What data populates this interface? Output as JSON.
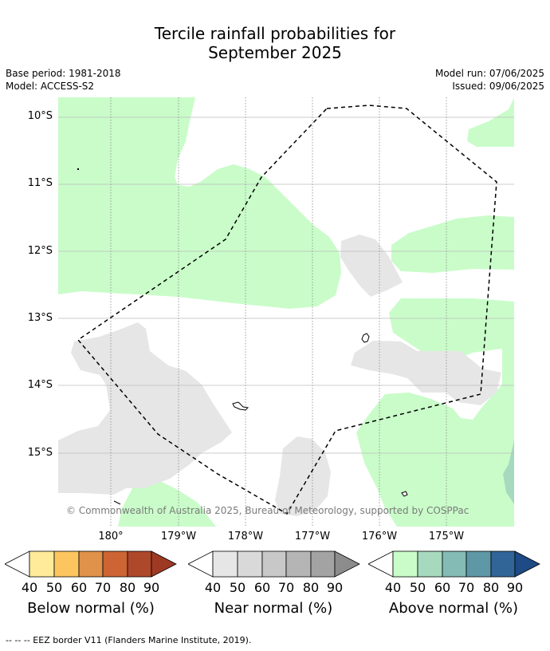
{
  "title_line1": "Tercile rainfall probabilities for",
  "title_line2": "September 2025",
  "base_period": "Base period: 1981-2018",
  "model": "Model: ACCESS-S2",
  "model_run": "Model run: 07/06/2025",
  "issued": "Issued: 09/06/2025",
  "lat_labels": [
    "10°S",
    "11°S",
    "12°S",
    "13°S",
    "14°S",
    "15°S"
  ],
  "lon_labels": [
    "180°",
    "179°W",
    "178°W",
    "177°W",
    "176°W",
    "175°W"
  ],
  "copyright": "© Commonwealth of Australia 2025, Bureau of Meteorology, supported by COSPPac",
  "colorbars": [
    {
      "label": "Below normal (%)",
      "ticks": [
        "40",
        "50",
        "60",
        "70",
        "80",
        "90"
      ],
      "colors": [
        "#ffeb99",
        "#fdc55f",
        "#e0914a",
        "#cc6433",
        "#ad482a",
        "#9e3a24"
      ]
    },
    {
      "label": "Near normal (%)",
      "ticks": [
        "40",
        "50",
        "60",
        "70",
        "80",
        "90"
      ],
      "colors": [
        "#e6e6e6",
        "#d9d9d9",
        "#c8c8c8",
        "#b5b5b5",
        "#a3a3a3",
        "#8c8c8c"
      ]
    },
    {
      "label": "Above normal (%)",
      "ticks": [
        "40",
        "50",
        "60",
        "70",
        "80",
        "90"
      ],
      "colors": [
        "#c9fcc9",
        "#a7d9bf",
        "#84bbb5",
        "#5e97a6",
        "#316598",
        "#1e4a86"
      ]
    }
  ],
  "footnote": "--  --  -- EEZ border V11 (Flanders Marine Institute, 2019).",
  "colors": {
    "above_40": "#c9fcc9",
    "near_40": "#e6e6e6",
    "above_50": "#a7d9bf"
  }
}
